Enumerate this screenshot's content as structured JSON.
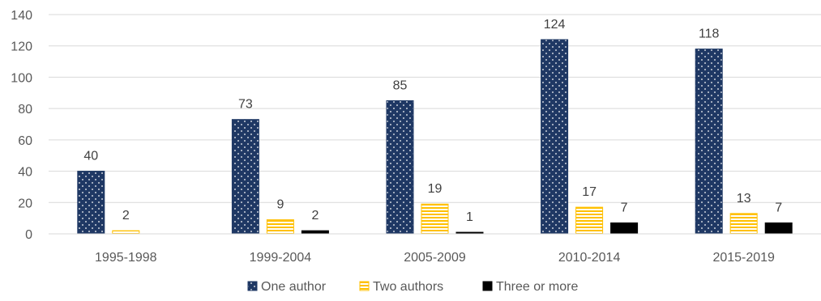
{
  "chart_data": {
    "type": "bar",
    "title": "",
    "xlabel": "",
    "ylabel": "",
    "ylim": [
      0,
      140
    ],
    "yticks": [
      0,
      20,
      40,
      60,
      80,
      100,
      120,
      140
    ],
    "grid": true,
    "legend_position": "bottom",
    "categories": [
      "1995-1998",
      "1999-2004",
      "2005-2009",
      "2010-2014",
      "2015-2019"
    ],
    "series": [
      {
        "name": "One author",
        "values": [
          40,
          73,
          85,
          124,
          118
        ],
        "data_labels": [
          "40",
          "73",
          "85",
          "124",
          "118"
        ],
        "color": "#1f3864",
        "pattern": "dots"
      },
      {
        "name": "Two authors",
        "values": [
          2,
          9,
          19,
          17,
          13
        ],
        "data_labels": [
          "2",
          "9",
          "19",
          "17",
          "13"
        ],
        "color": "#ffc000",
        "pattern": "horizontal-stripes"
      },
      {
        "name": "Three or more",
        "values": [
          0,
          2,
          1,
          7,
          7
        ],
        "data_labels": [
          "",
          "2",
          "1",
          "7",
          "7"
        ],
        "color": "#000000",
        "pattern": "solid"
      }
    ]
  }
}
